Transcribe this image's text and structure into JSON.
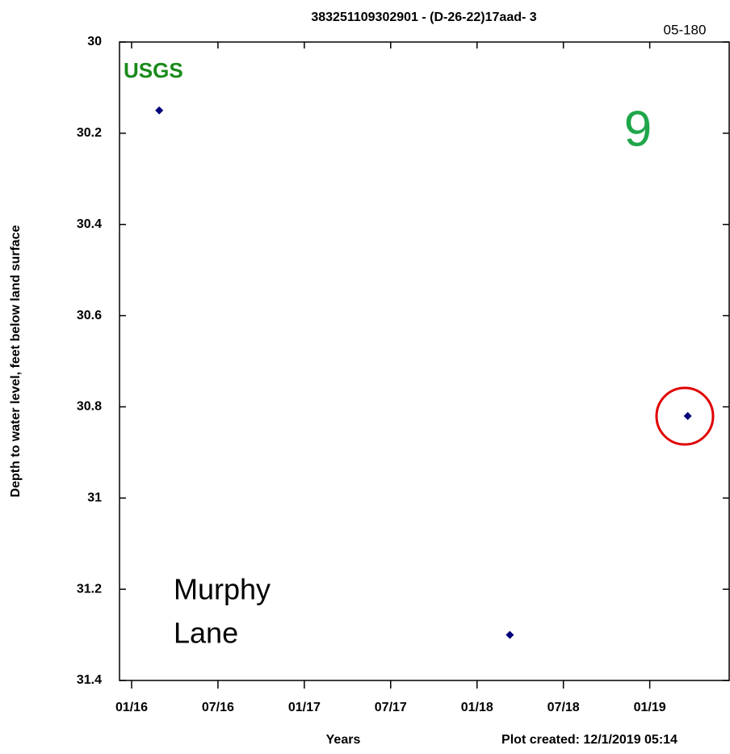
{
  "chart_data": {
    "type": "scatter",
    "title": "383251109302901 - (D-26-22)17aad- 3",
    "corner_label": "05-180",
    "agency": "USGS",
    "site_number": "9",
    "location_label": [
      "Murphy",
      "Lane"
    ],
    "y_label": "Depth to water level, feet below land surface",
    "x_label": "Years",
    "footer": "Plot created: 12/1/2019 05:14",
    "x": [
      2016.16,
      2018.19,
      2019.22
    ],
    "values": [
      30.15,
      31.3,
      30.82
    ],
    "color": "#00007a",
    "y_inverted": true,
    "xlim": [
      2015.93,
      2019.46
    ],
    "xticks": [
      {
        "value": 2016.0,
        "label": "01/16"
      },
      {
        "value": 2016.5,
        "label": "07/16"
      },
      {
        "value": 2017.0,
        "label": "01/17"
      },
      {
        "value": 2017.5,
        "label": "07/17"
      },
      {
        "value": 2018.0,
        "label": "01/18"
      },
      {
        "value": 2018.5,
        "label": "07/18"
      },
      {
        "value": 2019.0,
        "label": "01/19"
      }
    ],
    "ylim": [
      30,
      31.4
    ],
    "yticks": [
      30,
      30.2,
      30.4,
      30.6,
      30.8,
      31,
      31.2,
      31.4
    ]
  }
}
